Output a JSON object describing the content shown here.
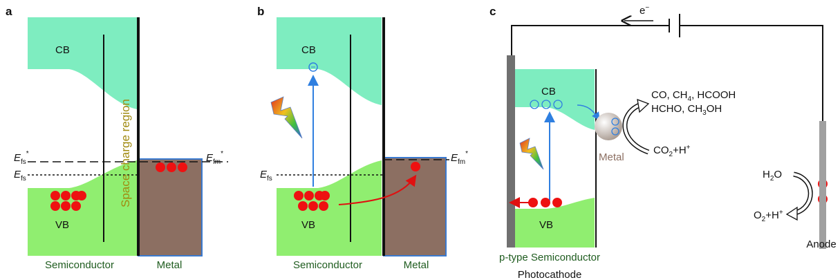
{
  "panel_a": {
    "letter": "a",
    "cb": "CB",
    "vb": "VB",
    "space_charge": "Space charge region",
    "efs_star": [
      "E",
      "fs",
      "*"
    ],
    "efs": [
      "E",
      "fs"
    ],
    "efm_star": [
      "E",
      "fm",
      "*"
    ],
    "semiconductor": "Semiconductor",
    "metal": "Metal"
  },
  "panel_b": {
    "letter": "b",
    "cb": "CB",
    "vb": "VB",
    "efs": [
      "E",
      "fs"
    ],
    "efm_star": [
      "E",
      "fm",
      "*"
    ],
    "semiconductor": "Semiconductor",
    "metal": "Metal"
  },
  "panel_c": {
    "letter": "c",
    "electron": [
      "e",
      "−"
    ],
    "cb": "CB",
    "vb": "VB",
    "products_1": [
      "CO, CH",
      "4",
      ", HCOOH"
    ],
    "products_2": [
      "HCHO, CH",
      "3",
      "OH"
    ],
    "metal": "Metal",
    "co2": [
      "CO",
      "2",
      "+H",
      "+"
    ],
    "h2o": [
      "H",
      "2",
      "O"
    ],
    "o2": [
      "O",
      "2",
      "+H",
      "+"
    ],
    "semiconductor": "p-type Semiconductor",
    "photocathode": "Photocathode",
    "anode": "Anode"
  }
}
